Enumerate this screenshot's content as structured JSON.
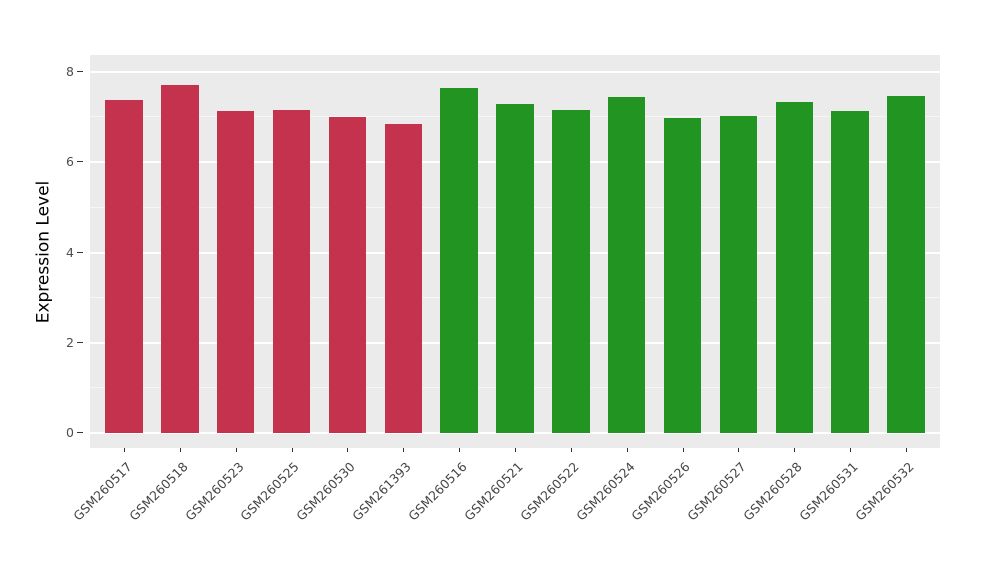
{
  "figure": {
    "background": "#FFFFFF",
    "panel_background": "#EBEBEB",
    "grid_color": "#FFFFFF"
  },
  "chart_data": {
    "type": "bar",
    "title": "",
    "xlabel": "",
    "ylabel": "Expression Level",
    "ylim": [
      0,
      8.4
    ],
    "yticks": [
      0,
      2,
      4,
      6,
      8
    ],
    "yticks_minor": [
      1,
      3,
      5,
      7
    ],
    "grid": true,
    "legend_position": "none",
    "x_label_rotation_deg": 45,
    "categories": [
      "GSM260517",
      "GSM260518",
      "GSM260523",
      "GSM260525",
      "GSM260530",
      "GSM261393",
      "GSM260516",
      "GSM260521",
      "GSM260522",
      "GSM260524",
      "GSM260526",
      "GSM260527",
      "GSM260528",
      "GSM260531",
      "GSM260532"
    ],
    "values": [
      7.38,
      7.72,
      7.14,
      7.16,
      7.01,
      6.85,
      7.64,
      7.3,
      7.17,
      7.44,
      6.99,
      7.04,
      7.34,
      7.13,
      7.47
    ],
    "colors": [
      "#C4324E",
      "#C4324E",
      "#C4324E",
      "#C4324E",
      "#C4324E",
      "#C4324E",
      "#219421",
      "#219421",
      "#219421",
      "#219421",
      "#219421",
      "#219421",
      "#219421",
      "#219421",
      "#219421"
    ],
    "group_colors": {
      "group1": "#C4324E",
      "group2": "#219421"
    }
  }
}
